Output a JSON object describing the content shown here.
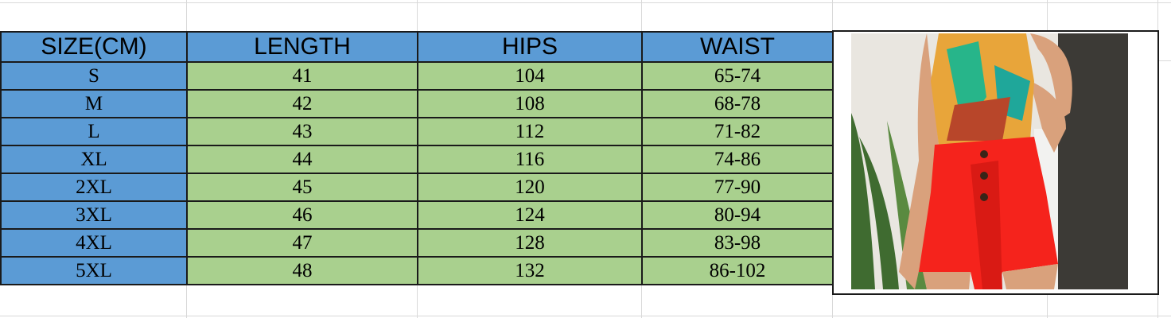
{
  "table": {
    "headers": [
      "SIZE(CM)",
      "LENGTH",
      "HIPS",
      "WAIST"
    ],
    "rows": [
      [
        "S",
        "41",
        "104",
        "65-74"
      ],
      [
        "M",
        "42",
        "108",
        "68-78"
      ],
      [
        "L",
        "43",
        "112",
        "71-82"
      ],
      [
        "XL",
        "44",
        "116",
        "74-86"
      ],
      [
        "2XL",
        "45",
        "120",
        "77-90"
      ],
      [
        "3XL",
        "46",
        "124",
        "80-94"
      ],
      [
        "4XL",
        "47",
        "128",
        "83-98"
      ],
      [
        "5XL",
        "48",
        "132",
        "86-102"
      ]
    ]
  },
  "colors": {
    "header": "#5b9bd5",
    "size_column": "#5b9bd5",
    "values": "#a9d08e",
    "shorts": "#f5231c"
  },
  "image": {
    "icon": "product-photo-red-high-waist-shorts"
  }
}
